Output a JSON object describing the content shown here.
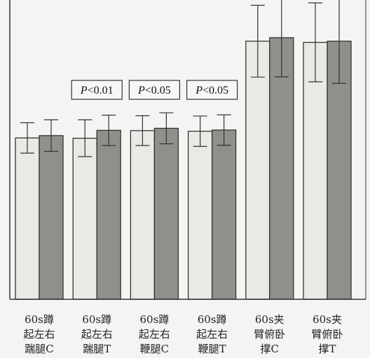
{
  "chart_data": {
    "type": "bar",
    "title": "",
    "xlabel": "",
    "ylabel": "",
    "ylim": [
      0,
      100
    ],
    "grid": false,
    "legend": "none",
    "categories": [
      [
        "60s蹲",
        "起左右",
        "踹腿C"
      ],
      [
        "60s蹲",
        "起左右",
        "踹腿T"
      ],
      [
        "60s蹲",
        "起左右",
        "鞭腿C"
      ],
      [
        "60s蹲",
        "起左右",
        "鞭腿T"
      ],
      [
        "60s夹",
        "臂俯卧",
        "撑C"
      ],
      [
        "60s夹",
        "臂俯卧",
        "撑T"
      ]
    ],
    "series": [
      {
        "values": [
          55.2,
          55.1,
          57.7,
          57.5,
          88.3,
          87.9
        ],
        "errors": [
          5.2,
          6.3,
          5.1,
          5.2,
          12.3,
          13.5
        ],
        "color": "#e9eae6"
      },
      {
        "values": [
          56.0,
          57.8,
          58.5,
          57.9,
          89.5,
          88.3
        ],
        "errors": [
          5.4,
          5.2,
          5.3,
          5.2,
          13.4,
          14.4
        ],
        "color": "#8f908c"
      }
    ],
    "annotations": [
      {
        "category_index": 1,
        "text_italic": "P",
        "text": "<0.01"
      },
      {
        "category_index": 2,
        "text_italic": "P",
        "text": "<0.05"
      },
      {
        "category_index": 3,
        "text_italic": "P",
        "text": "<0.05"
      }
    ]
  }
}
